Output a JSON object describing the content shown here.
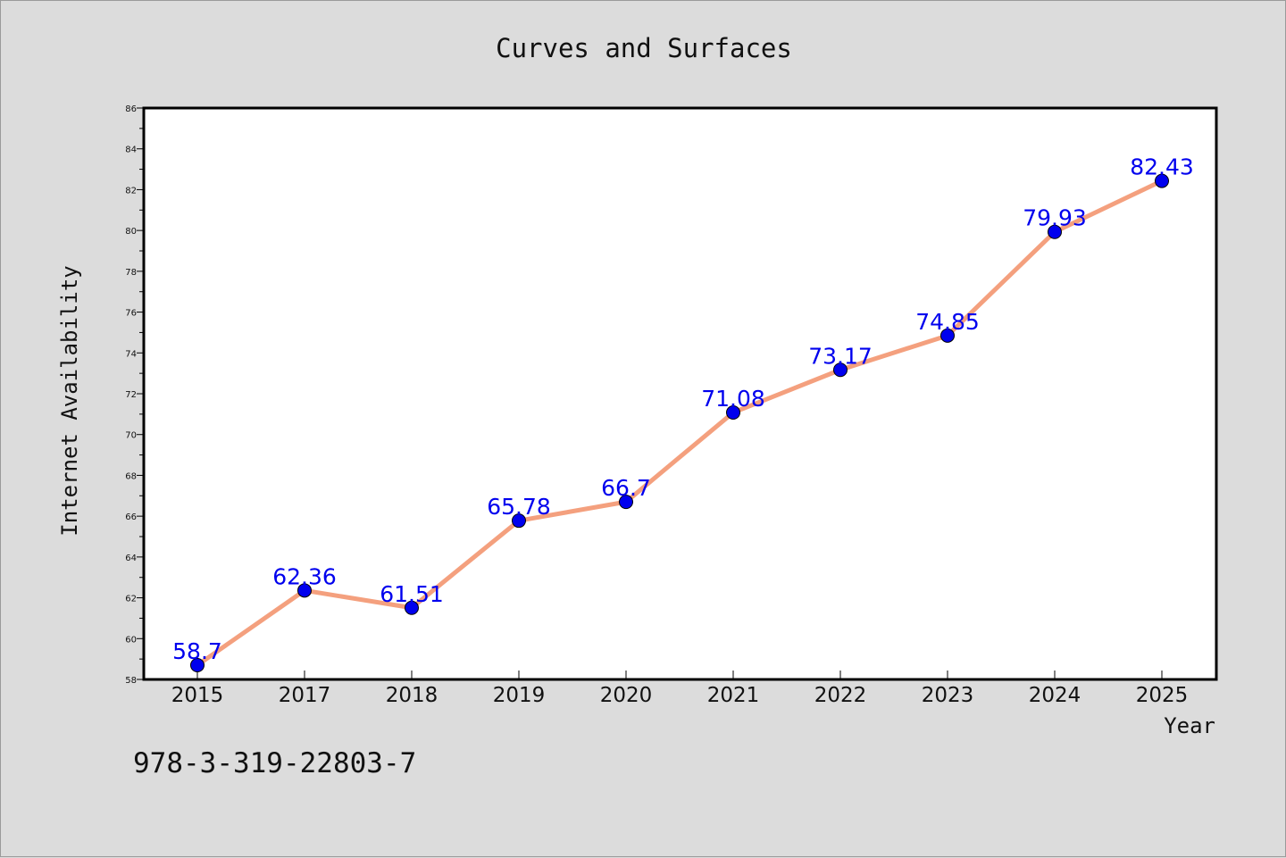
{
  "chart_data": {
    "type": "line",
    "title": "Curves and Surfaces",
    "xlabel": "Year",
    "ylabel": "Internet Availability",
    "categories": [
      "2015",
      "2017",
      "2018",
      "2019",
      "2020",
      "2021",
      "2022",
      "2023",
      "2024",
      "2025"
    ],
    "series": [
      {
        "values": [
          58.7,
          62.36,
          61.51,
          65.78,
          66.7,
          71.08,
          73.17,
          74.85,
          79.93,
          82.43
        ],
        "labels": [
          "58.7",
          "62.36",
          "61.51",
          "65.78",
          "66.7",
          "71.08",
          "73.17",
          "74.85",
          "79.93",
          "82.43"
        ]
      }
    ],
    "ylim": [
      58,
      86
    ],
    "yticks": [
      58,
      60,
      62,
      64,
      66,
      68,
      70,
      72,
      74,
      76,
      78,
      80,
      82,
      84,
      86
    ],
    "grid": false,
    "colors": {
      "line": "#f4a07e",
      "marker": "#0000ee",
      "data_label": "#0000ee",
      "background": "#dcdcdc",
      "plot_background": "#ffffff"
    },
    "footer_text": "978-3-319-22803-7"
  }
}
